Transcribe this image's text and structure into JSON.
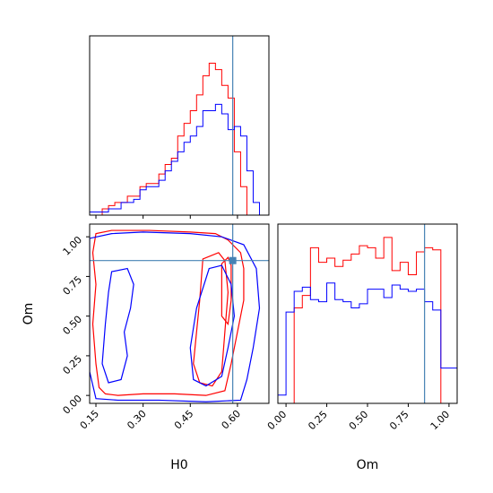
{
  "chart_data": [
    {
      "type": "histogram",
      "panel": "H0-marginal",
      "xlim": [
        0.13,
        0.7
      ],
      "x_ticks": [
        0.15,
        0.3,
        0.45,
        0.6
      ],
      "truth": 0.585,
      "bin_edges": [
        0.13,
        0.15,
        0.17,
        0.19,
        0.21,
        0.23,
        0.25,
        0.27,
        0.29,
        0.31,
        0.33,
        0.35,
        0.37,
        0.39,
        0.41,
        0.43,
        0.45,
        0.47,
        0.49,
        0.51,
        0.53,
        0.55,
        0.57,
        0.59,
        0.61,
        0.63,
        0.65,
        0.67,
        0.69
      ],
      "series": [
        {
          "color": "#ff0000",
          "values": [
            0,
            0,
            2,
            3,
            4,
            4,
            6,
            6,
            9,
            10,
            10,
            13,
            16,
            18,
            25,
            29,
            33,
            38,
            44,
            48,
            46,
            41,
            37,
            20,
            9,
            0,
            0,
            0
          ]
        },
        {
          "color": "#0000ff",
          "values": [
            1,
            1,
            1,
            2,
            2,
            4,
            4,
            5,
            8,
            9,
            9,
            11,
            14,
            17,
            20,
            23,
            25,
            28,
            33,
            33,
            35,
            32,
            27,
            28,
            25,
            14,
            4,
            0
          ]
        }
      ]
    },
    {
      "type": "histogram",
      "panel": "Om-marginal",
      "xlim": [
        -0.05,
        1.05
      ],
      "x_ticks": [
        0.0,
        0.25,
        0.5,
        0.75,
        1.0
      ],
      "xlabel": "Om",
      "truth": 0.85,
      "bin_edges": [
        -0.05,
        0.0,
        0.05,
        0.1,
        0.15,
        0.2,
        0.25,
        0.3,
        0.35,
        0.4,
        0.45,
        0.5,
        0.55,
        0.6,
        0.65,
        0.7,
        0.75,
        0.8,
        0.85,
        0.9,
        0.95,
        1.0,
        1.05
      ],
      "series": [
        {
          "color": "#ff0000",
          "values": [
            0,
            0,
            46,
            52,
            75,
            68,
            70,
            66,
            69,
            72,
            76,
            75,
            70,
            80,
            64,
            68,
            62,
            73,
            75,
            74,
            0,
            0
          ]
        },
        {
          "color": "#0000ff",
          "values": [
            4,
            44,
            54,
            56,
            50,
            49,
            58,
            50,
            49,
            46,
            48,
            55,
            55,
            51,
            57,
            55,
            54,
            55,
            49,
            45,
            17,
            17
          ]
        }
      ]
    },
    {
      "type": "contour",
      "panel": "H0-Om-joint",
      "xlabel": "H0",
      "ylabel": "Om",
      "xlim": [
        0.13,
        0.7
      ],
      "ylim": [
        -0.05,
        1.08
      ],
      "x_ticks": [
        0.15,
        0.3,
        0.45,
        0.6
      ],
      "y_ticks": [
        0.0,
        0.25,
        0.5,
        0.75,
        1.0
      ],
      "truth": [
        0.585,
        0.85
      ],
      "contours": [
        {
          "color": "#ff0000",
          "points": [
            [
              0.15,
              1.02
            ],
            [
              0.2,
              1.04
            ],
            [
              0.32,
              1.04
            ],
            [
              0.45,
              1.03
            ],
            [
              0.53,
              1.02
            ],
            [
              0.57,
              0.98
            ],
            [
              0.61,
              0.9
            ],
            [
              0.62,
              0.8
            ],
            [
              0.62,
              0.6
            ],
            [
              0.6,
              0.4
            ],
            [
              0.58,
              0.2
            ],
            [
              0.56,
              0.03
            ],
            [
              0.5,
              0.0
            ],
            [
              0.4,
              0.01
            ],
            [
              0.3,
              0.01
            ],
            [
              0.22,
              0.0
            ],
            [
              0.18,
              0.01
            ],
            [
              0.16,
              0.05
            ],
            [
              0.15,
              0.2
            ],
            [
              0.14,
              0.45
            ],
            [
              0.15,
              0.7
            ],
            [
              0.14,
              0.9
            ],
            [
              0.15,
              1.02
            ]
          ]
        },
        {
          "color": "#ff0000",
          "points": [
            [
              0.49,
              0.86
            ],
            [
              0.54,
              0.9
            ],
            [
              0.56,
              0.85
            ],
            [
              0.57,
              0.65
            ],
            [
              0.56,
              0.4
            ],
            [
              0.55,
              0.15
            ],
            [
              0.52,
              0.06
            ],
            [
              0.48,
              0.08
            ],
            [
              0.46,
              0.2
            ],
            [
              0.47,
              0.4
            ],
            [
              0.48,
              0.6
            ],
            [
              0.49,
              0.86
            ]
          ]
        },
        {
          "color": "#ff0000",
          "points": [
            [
              0.55,
              0.83
            ],
            [
              0.57,
              0.87
            ],
            [
              0.58,
              0.82
            ],
            [
              0.58,
              0.6
            ],
            [
              0.57,
              0.45
            ],
            [
              0.55,
              0.5
            ],
            [
              0.55,
              0.7
            ],
            [
              0.55,
              0.83
            ]
          ]
        },
        {
          "color": "#0000ff",
          "points": [
            [
              0.13,
              0.99
            ],
            [
              0.2,
              1.02
            ],
            [
              0.3,
              1.03
            ],
            [
              0.45,
              1.02
            ],
            [
              0.55,
              1.0
            ],
            [
              0.62,
              0.95
            ],
            [
              0.66,
              0.8
            ],
            [
              0.67,
              0.55
            ],
            [
              0.65,
              0.3
            ],
            [
              0.63,
              0.1
            ],
            [
              0.61,
              -0.03
            ],
            [
              0.5,
              -0.04
            ],
            [
              0.35,
              -0.03
            ],
            [
              0.22,
              -0.03
            ],
            [
              0.15,
              -0.02
            ],
            [
              0.13,
              0.15
            ],
            [
              0.13,
              0.5
            ],
            [
              0.13,
              0.8
            ],
            [
              0.13,
              0.99
            ]
          ]
        },
        {
          "color": "#0000ff",
          "points": [
            [
              0.2,
              0.78
            ],
            [
              0.25,
              0.8
            ],
            [
              0.27,
              0.7
            ],
            [
              0.26,
              0.55
            ],
            [
              0.24,
              0.4
            ],
            [
              0.25,
              0.25
            ],
            [
              0.23,
              0.1
            ],
            [
              0.19,
              0.08
            ],
            [
              0.17,
              0.2
            ],
            [
              0.18,
              0.45
            ],
            [
              0.19,
              0.65
            ],
            [
              0.2,
              0.78
            ]
          ]
        },
        {
          "color": "#0000ff",
          "points": [
            [
              0.51,
              0.8
            ],
            [
              0.55,
              0.82
            ],
            [
              0.58,
              0.7
            ],
            [
              0.59,
              0.5
            ],
            [
              0.57,
              0.3
            ],
            [
              0.55,
              0.12
            ],
            [
              0.5,
              0.06
            ],
            [
              0.46,
              0.1
            ],
            [
              0.45,
              0.3
            ],
            [
              0.47,
              0.55
            ],
            [
              0.51,
              0.8
            ]
          ]
        }
      ]
    }
  ]
}
